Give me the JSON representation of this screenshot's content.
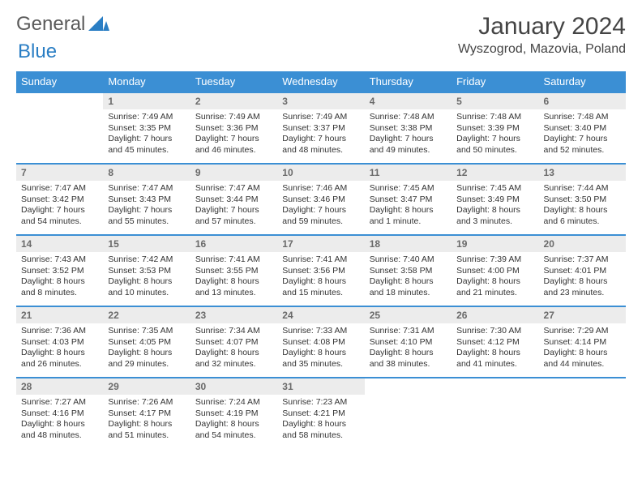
{
  "brand": {
    "part1": "General",
    "part2": "Blue"
  },
  "title": "January 2024",
  "location": "Wyszogrod, Mazovia, Poland",
  "colors": {
    "header_bg": "#3b8fd4",
    "header_fg": "#ffffff",
    "row_border": "#3b8fd4",
    "daynum_bg": "#ececec",
    "daynum_fg": "#6a6a6a",
    "body_bg": "#ffffff",
    "text": "#333333",
    "brand_gray": "#5a5a5a",
    "brand_blue": "#2a7ec4"
  },
  "day_headers": [
    "Sunday",
    "Monday",
    "Tuesday",
    "Wednesday",
    "Thursday",
    "Friday",
    "Saturday"
  ],
  "weeks": [
    [
      null,
      {
        "n": "1",
        "sr": "7:49 AM",
        "ss": "3:35 PM",
        "dl": "7 hours and 45 minutes."
      },
      {
        "n": "2",
        "sr": "7:49 AM",
        "ss": "3:36 PM",
        "dl": "7 hours and 46 minutes."
      },
      {
        "n": "3",
        "sr": "7:49 AM",
        "ss": "3:37 PM",
        "dl": "7 hours and 48 minutes."
      },
      {
        "n": "4",
        "sr": "7:48 AM",
        "ss": "3:38 PM",
        "dl": "7 hours and 49 minutes."
      },
      {
        "n": "5",
        "sr": "7:48 AM",
        "ss": "3:39 PM",
        "dl": "7 hours and 50 minutes."
      },
      {
        "n": "6",
        "sr": "7:48 AM",
        "ss": "3:40 PM",
        "dl": "7 hours and 52 minutes."
      }
    ],
    [
      {
        "n": "7",
        "sr": "7:47 AM",
        "ss": "3:42 PM",
        "dl": "7 hours and 54 minutes."
      },
      {
        "n": "8",
        "sr": "7:47 AM",
        "ss": "3:43 PM",
        "dl": "7 hours and 55 minutes."
      },
      {
        "n": "9",
        "sr": "7:47 AM",
        "ss": "3:44 PM",
        "dl": "7 hours and 57 minutes."
      },
      {
        "n": "10",
        "sr": "7:46 AM",
        "ss": "3:46 PM",
        "dl": "7 hours and 59 minutes."
      },
      {
        "n": "11",
        "sr": "7:45 AM",
        "ss": "3:47 PM",
        "dl": "8 hours and 1 minute."
      },
      {
        "n": "12",
        "sr": "7:45 AM",
        "ss": "3:49 PM",
        "dl": "8 hours and 3 minutes."
      },
      {
        "n": "13",
        "sr": "7:44 AM",
        "ss": "3:50 PM",
        "dl": "8 hours and 6 minutes."
      }
    ],
    [
      {
        "n": "14",
        "sr": "7:43 AM",
        "ss": "3:52 PM",
        "dl": "8 hours and 8 minutes."
      },
      {
        "n": "15",
        "sr": "7:42 AM",
        "ss": "3:53 PM",
        "dl": "8 hours and 10 minutes."
      },
      {
        "n": "16",
        "sr": "7:41 AM",
        "ss": "3:55 PM",
        "dl": "8 hours and 13 minutes."
      },
      {
        "n": "17",
        "sr": "7:41 AM",
        "ss": "3:56 PM",
        "dl": "8 hours and 15 minutes."
      },
      {
        "n": "18",
        "sr": "7:40 AM",
        "ss": "3:58 PM",
        "dl": "8 hours and 18 minutes."
      },
      {
        "n": "19",
        "sr": "7:39 AM",
        "ss": "4:00 PM",
        "dl": "8 hours and 21 minutes."
      },
      {
        "n": "20",
        "sr": "7:37 AM",
        "ss": "4:01 PM",
        "dl": "8 hours and 23 minutes."
      }
    ],
    [
      {
        "n": "21",
        "sr": "7:36 AM",
        "ss": "4:03 PM",
        "dl": "8 hours and 26 minutes."
      },
      {
        "n": "22",
        "sr": "7:35 AM",
        "ss": "4:05 PM",
        "dl": "8 hours and 29 minutes."
      },
      {
        "n": "23",
        "sr": "7:34 AM",
        "ss": "4:07 PM",
        "dl": "8 hours and 32 minutes."
      },
      {
        "n": "24",
        "sr": "7:33 AM",
        "ss": "4:08 PM",
        "dl": "8 hours and 35 minutes."
      },
      {
        "n": "25",
        "sr": "7:31 AM",
        "ss": "4:10 PM",
        "dl": "8 hours and 38 minutes."
      },
      {
        "n": "26",
        "sr": "7:30 AM",
        "ss": "4:12 PM",
        "dl": "8 hours and 41 minutes."
      },
      {
        "n": "27",
        "sr": "7:29 AM",
        "ss": "4:14 PM",
        "dl": "8 hours and 44 minutes."
      }
    ],
    [
      {
        "n": "28",
        "sr": "7:27 AM",
        "ss": "4:16 PM",
        "dl": "8 hours and 48 minutes."
      },
      {
        "n": "29",
        "sr": "7:26 AM",
        "ss": "4:17 PM",
        "dl": "8 hours and 51 minutes."
      },
      {
        "n": "30",
        "sr": "7:24 AM",
        "ss": "4:19 PM",
        "dl": "8 hours and 54 minutes."
      },
      {
        "n": "31",
        "sr": "7:23 AM",
        "ss": "4:21 PM",
        "dl": "8 hours and 58 minutes."
      },
      null,
      null,
      null
    ]
  ],
  "labels": {
    "sunrise": "Sunrise:",
    "sunset": "Sunset:",
    "daylight": "Daylight:"
  }
}
